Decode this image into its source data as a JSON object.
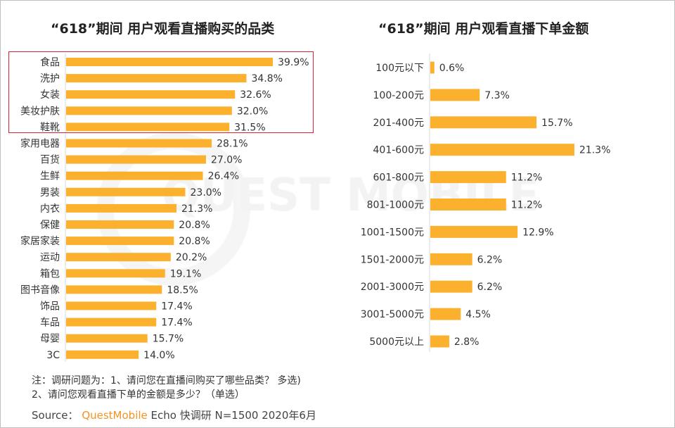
{
  "chart_data": [
    {
      "type": "bar",
      "orientation": "horizontal",
      "title": "“618”期间 用户观看直播购买的品类",
      "categories": [
        "食品",
        "洗护",
        "女装",
        "美妆护肤",
        "鞋靴",
        "家用电器",
        "百货",
        "生鲜",
        "男装",
        "内衣",
        "保健",
        "家居家装",
        "运动",
        "箱包",
        "图书音像",
        "饰品",
        "车品",
        "母婴",
        "3C"
      ],
      "values": [
        39.9,
        34.8,
        32.6,
        32.0,
        31.5,
        28.1,
        27.0,
        26.4,
        23.0,
        21.3,
        20.8,
        20.8,
        20.2,
        19.1,
        18.5,
        17.4,
        17.4,
        15.7,
        14.0
      ],
      "value_labels": [
        "39.9%",
        "34.8%",
        "32.6%",
        "32.0%",
        "31.5%",
        "28.1%",
        "27.0%",
        "26.4%",
        "23.0%",
        "21.3%",
        "20.8%",
        "20.8%",
        "20.2%",
        "19.1%",
        "18.5%",
        "17.4%",
        "17.4%",
        "15.7%",
        "14.0%"
      ],
      "unit": "%",
      "highlighted_top": 5,
      "highlight_color": "#e0202c",
      "bar_color": "#fbb12e",
      "grid": false
    },
    {
      "type": "bar",
      "orientation": "horizontal",
      "title": "“618”期间 用户观看直播下单金额",
      "categories": [
        "100元以下",
        "100-200元",
        "201-400元",
        "401-600元",
        "601-800元",
        "801-1000元",
        "1001-1500元",
        "1501-2000元",
        "2001-3000元",
        "3001-5000元",
        "5000元以上"
      ],
      "values": [
        0.6,
        7.3,
        15.7,
        21.3,
        11.2,
        11.2,
        12.9,
        6.2,
        6.2,
        4.5,
        2.8
      ],
      "value_labels": [
        "0.6%",
        "7.3%",
        "15.7%",
        "21.3%",
        "11.2%",
        "11.2%",
        "12.9%",
        "6.2%",
        "6.2%",
        "4.5%",
        "2.8%"
      ],
      "unit": "%",
      "bar_color": "#fbb12e",
      "grid": false
    }
  ],
  "watermark": "QUEST MOBILE",
  "notes": {
    "line1": "注：调研问题为：1、请问您在直播间购买了哪些品类？ 多选)",
    "line2": "2、请问您观看直播下单的金额是多少？（单选）"
  },
  "source": {
    "label": "Source：",
    "brand": "QuestMobile",
    "rest": "Echo 快调研 N=1500 2020年6月"
  }
}
